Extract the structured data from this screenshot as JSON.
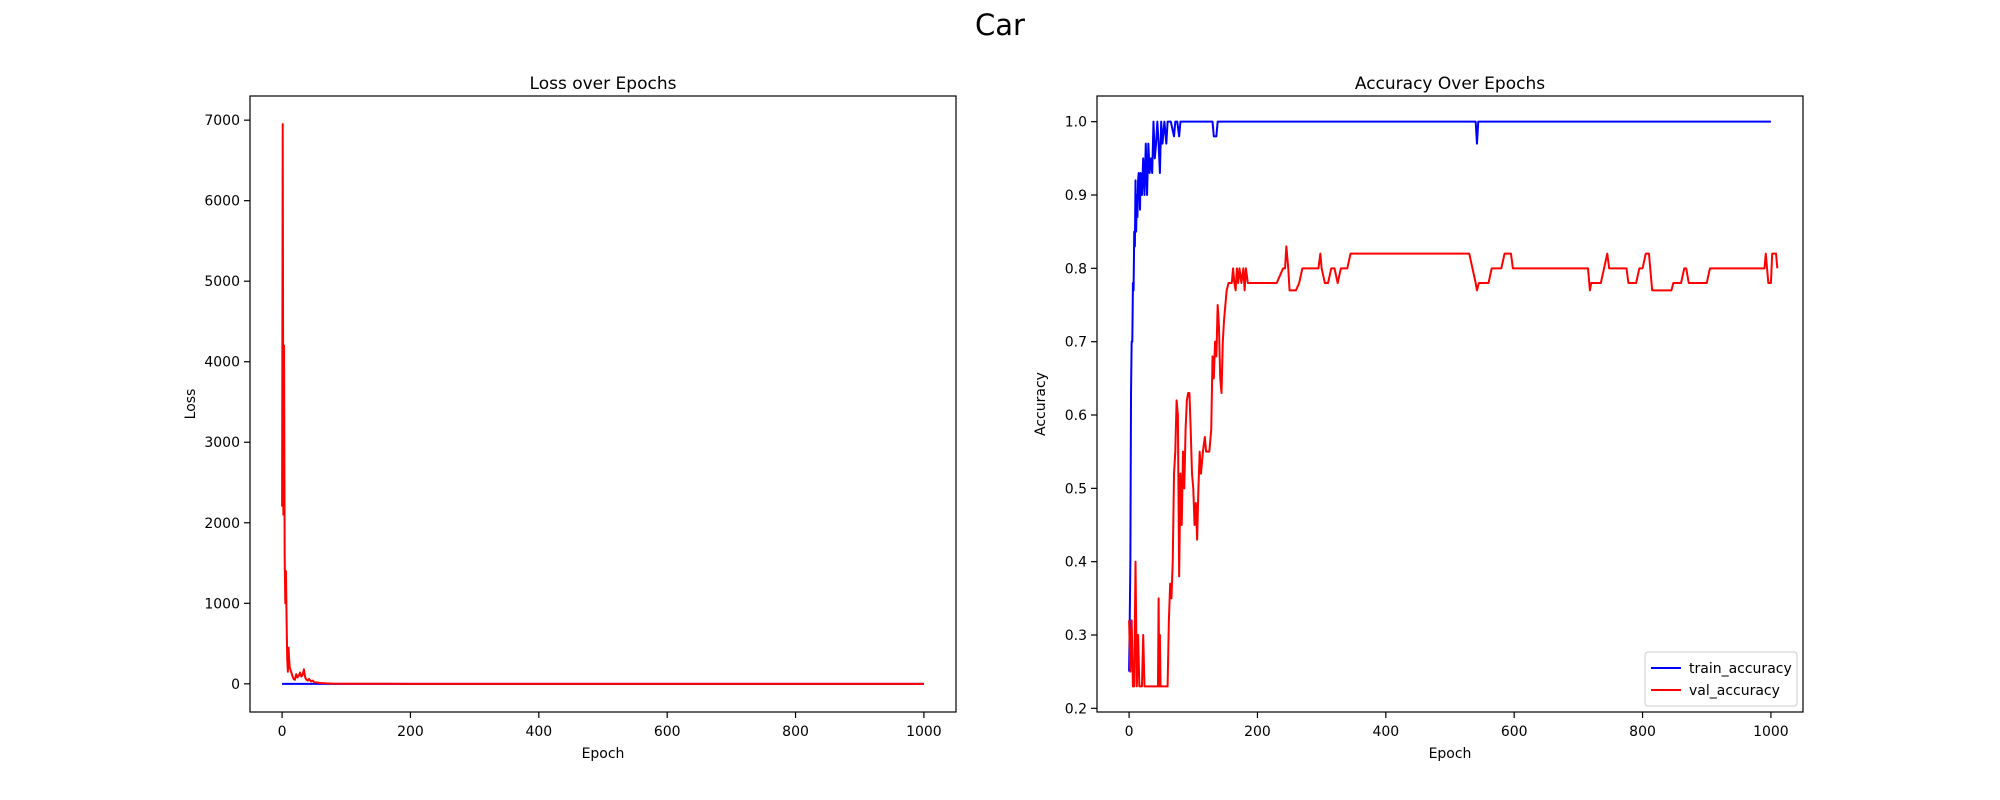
{
  "figure": {
    "title": "Car"
  },
  "chart_data": [
    {
      "type": "line",
      "title": "Loss over Epochs",
      "xlabel": "Epoch",
      "ylabel": "Loss",
      "xlim": [
        -50,
        1050
      ],
      "ylim": [
        -350,
        7300
      ],
      "xticks": [
        0,
        200,
        400,
        600,
        800,
        1000
      ],
      "yticks": [
        0,
        1000,
        2000,
        3000,
        4000,
        5000,
        6000,
        7000
      ],
      "grid": false,
      "legend": "none",
      "series": [
        {
          "color": "#0000ff",
          "points": [
            [
              0,
              0
            ],
            [
              10,
              0
            ],
            [
              20,
              0
            ],
            [
              30,
              0
            ],
            [
              40,
              0
            ],
            [
              50,
              0
            ],
            [
              60,
              0
            ],
            [
              100,
              0
            ],
            [
              200,
              0
            ],
            [
              400,
              0
            ],
            [
              600,
              0
            ],
            [
              800,
              0
            ],
            [
              1000,
              0
            ]
          ]
        },
        {
          "color": "#ff0000",
          "points": [
            [
              0,
              2200
            ],
            [
              1,
              6950
            ],
            [
              2,
              2100
            ],
            [
              3,
              4200
            ],
            [
              4,
              1600
            ],
            [
              5,
              1000
            ],
            [
              6,
              1400
            ],
            [
              7,
              800
            ],
            [
              8,
              300
            ],
            [
              9,
              150
            ],
            [
              10,
              450
            ],
            [
              11,
              300
            ],
            [
              12,
              200
            ],
            [
              14,
              150
            ],
            [
              16,
              100
            ],
            [
              18,
              60
            ],
            [
              20,
              50
            ],
            [
              22,
              120
            ],
            [
              24,
              80
            ],
            [
              26,
              100
            ],
            [
              28,
              140
            ],
            [
              30,
              90
            ],
            [
              32,
              110
            ],
            [
              34,
              180
            ],
            [
              36,
              80
            ],
            [
              38,
              50
            ],
            [
              40,
              40
            ],
            [
              42,
              60
            ],
            [
              45,
              30
            ],
            [
              48,
              40
            ],
            [
              50,
              20
            ],
            [
              55,
              15
            ],
            [
              60,
              10
            ],
            [
              70,
              5
            ],
            [
              80,
              2
            ],
            [
              100,
              1
            ],
            [
              200,
              0
            ],
            [
              400,
              0
            ],
            [
              600,
              0
            ],
            [
              800,
              0
            ],
            [
              1000,
              0
            ]
          ]
        }
      ]
    },
    {
      "type": "line",
      "title": "Accuracy Over Epochs",
      "xlabel": "Epoch",
      "ylabel": "Accuracy",
      "xlim": [
        -50,
        1050
      ],
      "ylim": [
        0.195,
        1.035
      ],
      "xticks": [
        0,
        200,
        400,
        600,
        800,
        1000
      ],
      "yticks": [
        0.2,
        0.3,
        0.4,
        0.5,
        0.6,
        0.7,
        0.8,
        0.9,
        1.0
      ],
      "grid": false,
      "legend": "bottom-right",
      "series": [
        {
          "name": "train_accuracy",
          "color": "#0000ff",
          "points": [
            [
              0,
              0.25
            ],
            [
              1,
              0.32
            ],
            [
              2,
              0.4
            ],
            [
              3,
              0.63
            ],
            [
              4,
              0.7
            ],
            [
              5,
              0.7
            ],
            [
              6,
              0.78
            ],
            [
              7,
              0.77
            ],
            [
              8,
              0.85
            ],
            [
              9,
              0.83
            ],
            [
              10,
              0.92
            ],
            [
              11,
              0.85
            ],
            [
              12,
              0.9
            ],
            [
              13,
              0.87
            ],
            [
              14,
              0.92
            ],
            [
              15,
              0.93
            ],
            [
              16,
              0.92
            ],
            [
              17,
              0.88
            ],
            [
              18,
              0.93
            ],
            [
              20,
              0.9
            ],
            [
              22,
              0.95
            ],
            [
              24,
              0.9
            ],
            [
              26,
              0.97
            ],
            [
              28,
              0.9
            ],
            [
              30,
              0.97
            ],
            [
              32,
              0.93
            ],
            [
              34,
              0.95
            ],
            [
              36,
              0.93
            ],
            [
              38,
              1.0
            ],
            [
              40,
              0.95
            ],
            [
              42,
              0.97
            ],
            [
              44,
              1.0
            ],
            [
              46,
              0.97
            ],
            [
              48,
              0.93
            ],
            [
              50,
              1.0
            ],
            [
              52,
              0.97
            ],
            [
              55,
              1.0
            ],
            [
              58,
              0.97
            ],
            [
              60,
              1.0
            ],
            [
              65,
              1.0
            ],
            [
              70,
              0.98
            ],
            [
              72,
              1.0
            ],
            [
              75,
              1.0
            ],
            [
              78,
              0.98
            ],
            [
              80,
              1.0
            ],
            [
              130,
              1.0
            ],
            [
              132,
              0.98
            ],
            [
              136,
              0.98
            ],
            [
              138,
              1.0
            ],
            [
              540,
              1.0
            ],
            [
              542,
              0.97
            ],
            [
              544,
              1.0
            ],
            [
              1000,
              1.0
            ]
          ]
        },
        {
          "name": "val_accuracy",
          "color": "#ff0000",
          "points": [
            [
              0,
              0.32
            ],
            [
              2,
              0.25
            ],
            [
              4,
              0.32
            ],
            [
              6,
              0.23
            ],
            [
              8,
              0.23
            ],
            [
              10,
              0.4
            ],
            [
              12,
              0.23
            ],
            [
              14,
              0.3
            ],
            [
              16,
              0.23
            ],
            [
              18,
              0.23
            ],
            [
              20,
              0.23
            ],
            [
              22,
              0.3
            ],
            [
              24,
              0.23
            ],
            [
              40,
              0.23
            ],
            [
              45,
              0.23
            ],
            [
              46,
              0.35
            ],
            [
              47,
              0.23
            ],
            [
              48,
              0.3
            ],
            [
              49,
              0.23
            ],
            [
              50,
              0.23
            ],
            [
              60,
              0.23
            ],
            [
              62,
              0.32
            ],
            [
              64,
              0.37
            ],
            [
              66,
              0.35
            ],
            [
              68,
              0.4
            ],
            [
              70,
              0.52
            ],
            [
              72,
              0.55
            ],
            [
              74,
              0.62
            ],
            [
              76,
              0.6
            ],
            [
              78,
              0.38
            ],
            [
              80,
              0.52
            ],
            [
              82,
              0.45
            ],
            [
              84,
              0.55
            ],
            [
              86,
              0.5
            ],
            [
              88,
              0.58
            ],
            [
              90,
              0.62
            ],
            [
              92,
              0.63
            ],
            [
              94,
              0.63
            ],
            [
              96,
              0.58
            ],
            [
              98,
              0.52
            ],
            [
              100,
              0.5
            ],
            [
              102,
              0.45
            ],
            [
              104,
              0.48
            ],
            [
              106,
              0.43
            ],
            [
              108,
              0.5
            ],
            [
              110,
              0.55
            ],
            [
              112,
              0.52
            ],
            [
              115,
              0.55
            ],
            [
              118,
              0.57
            ],
            [
              120,
              0.55
            ],
            [
              125,
              0.55
            ],
            [
              128,
              0.58
            ],
            [
              130,
              0.68
            ],
            [
              132,
              0.65
            ],
            [
              134,
              0.7
            ],
            [
              136,
              0.68
            ],
            [
              138,
              0.75
            ],
            [
              140,
              0.72
            ],
            [
              142,
              0.65
            ],
            [
              144,
              0.63
            ],
            [
              146,
              0.7
            ],
            [
              148,
              0.73
            ],
            [
              150,
              0.75
            ],
            [
              152,
              0.77
            ],
            [
              155,
              0.78
            ],
            [
              160,
              0.78
            ],
            [
              162,
              0.8
            ],
            [
              164,
              0.78
            ],
            [
              166,
              0.77
            ],
            [
              168,
              0.8
            ],
            [
              170,
              0.78
            ],
            [
              172,
              0.8
            ],
            [
              175,
              0.78
            ],
            [
              178,
              0.8
            ],
            [
              180,
              0.77
            ],
            [
              182,
              0.8
            ],
            [
              185,
              0.78
            ],
            [
              190,
              0.78
            ],
            [
              200,
              0.78
            ],
            [
              210,
              0.78
            ],
            [
              230,
              0.78
            ],
            [
              240,
              0.8
            ],
            [
              243,
              0.8
            ],
            [
              245,
              0.83
            ],
            [
              248,
              0.8
            ],
            [
              250,
              0.77
            ],
            [
              255,
              0.77
            ],
            [
              260,
              0.77
            ],
            [
              265,
              0.78
            ],
            [
              270,
              0.8
            ],
            [
              280,
              0.8
            ],
            [
              285,
              0.8
            ],
            [
              290,
              0.8
            ],
            [
              295,
              0.8
            ],
            [
              298,
              0.82
            ],
            [
              300,
              0.8
            ],
            [
              305,
              0.78
            ],
            [
              310,
              0.78
            ],
            [
              315,
              0.8
            ],
            [
              320,
              0.8
            ],
            [
              325,
              0.78
            ],
            [
              330,
              0.8
            ],
            [
              340,
              0.8
            ],
            [
              345,
              0.82
            ],
            [
              400,
              0.82
            ],
            [
              450,
              0.82
            ],
            [
              500,
              0.82
            ],
            [
              530,
              0.82
            ],
            [
              535,
              0.8
            ],
            [
              540,
              0.78
            ],
            [
              542,
              0.77
            ],
            [
              545,
              0.78
            ],
            [
              550,
              0.78
            ],
            [
              560,
              0.78
            ],
            [
              565,
              0.8
            ],
            [
              580,
              0.8
            ],
            [
              585,
              0.82
            ],
            [
              595,
              0.82
            ],
            [
              598,
              0.8
            ],
            [
              650,
              0.8
            ],
            [
              700,
              0.8
            ],
            [
              715,
              0.8
            ],
            [
              718,
              0.77
            ],
            [
              720,
              0.78
            ],
            [
              735,
              0.78
            ],
            [
              740,
              0.8
            ],
            [
              745,
              0.82
            ],
            [
              748,
              0.8
            ],
            [
              760,
              0.8
            ],
            [
              775,
              0.8
            ],
            [
              778,
              0.78
            ],
            [
              790,
              0.78
            ],
            [
              795,
              0.8
            ],
            [
              800,
              0.8
            ],
            [
              805,
              0.82
            ],
            [
              810,
              0.82
            ],
            [
              812,
              0.8
            ],
            [
              815,
              0.77
            ],
            [
              830,
              0.77
            ],
            [
              845,
              0.77
            ],
            [
              848,
              0.78
            ],
            [
              860,
              0.78
            ],
            [
              865,
              0.8
            ],
            [
              868,
              0.8
            ],
            [
              872,
              0.78
            ],
            [
              880,
              0.78
            ],
            [
              900,
              0.78
            ],
            [
              905,
              0.8
            ],
            [
              990,
              0.8
            ],
            [
              992,
              0.82
            ],
            [
              994,
              0.8
            ],
            [
              996,
              0.78
            ],
            [
              1000,
              0.78
            ],
            [
              1002,
              0.82
            ],
            [
              1008,
              0.82
            ],
            [
              1010,
              0.8
            ]
          ]
        }
      ]
    }
  ]
}
